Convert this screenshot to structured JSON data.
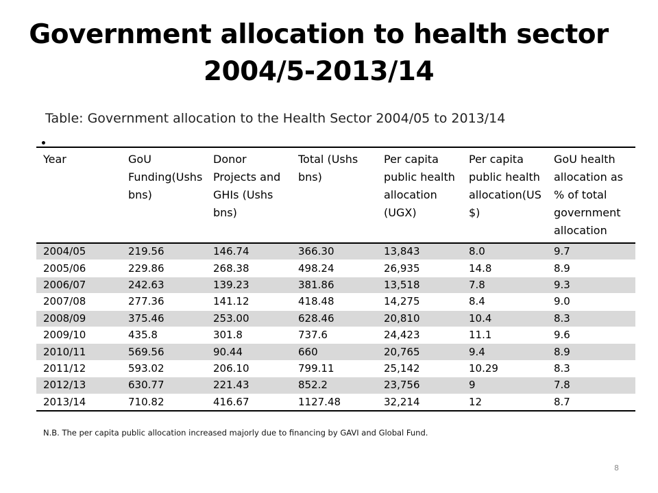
{
  "slide": {
    "title_line1": "Government allocation to health sector",
    "title_line2": "2004/5-2013/14",
    "table_caption": "Table: Government allocation to the Health Sector 2004/05 to 2013/14",
    "bullet": "•",
    "note": "N.B. The per capita  public allocation increased majorly due to financing by GAVI and Global Fund.",
    "page_number": "8"
  },
  "table": {
    "headers": [
      "Year",
      "GoU Funding(Ushs bns)",
      "Donor Projects and GHIs (Ushs bns)",
      "Total (Ushs bns)",
      "Per capita public health allocation (UGX)",
      "Per capita public health allocation(US $)",
      "GoU health allocation as % of total government allocation"
    ],
    "rows": [
      [
        "2004/05",
        "219.56",
        "146.74",
        "366.30",
        "13,843",
        "8.0",
        "9.7"
      ],
      [
        "2005/06",
        "229.86",
        "268.38",
        "498.24",
        "26,935",
        "14.8",
        "8.9"
      ],
      [
        "2006/07",
        "242.63",
        "139.23",
        "381.86",
        "13,518",
        "7.8",
        "9.3"
      ],
      [
        "2007/08",
        "277.36",
        "141.12",
        "418.48",
        "14,275",
        "8.4",
        "9.0"
      ],
      [
        "2008/09",
        "375.46",
        "253.00",
        "628.46",
        "20,810",
        "10.4",
        "8.3"
      ],
      [
        "2009/10",
        "435.8",
        "301.8",
        "737.6",
        "24,423",
        "11.1",
        "9.6"
      ],
      [
        "2010/11",
        "569.56",
        "90.44",
        "660",
        "20,765",
        "9.4",
        "8.9"
      ],
      [
        "2011/12",
        "593.02",
        "206.10",
        "799.11",
        "25,142",
        "10.29",
        "8.3"
      ],
      [
        "2012/13",
        "630.77",
        "221.43",
        "852.2",
        "23,756",
        "9",
        "7.8"
      ],
      [
        "2013/14",
        "710.82",
        "416.67",
        "1127.48",
        "32,214",
        "12",
        "8.7"
      ]
    ]
  }
}
